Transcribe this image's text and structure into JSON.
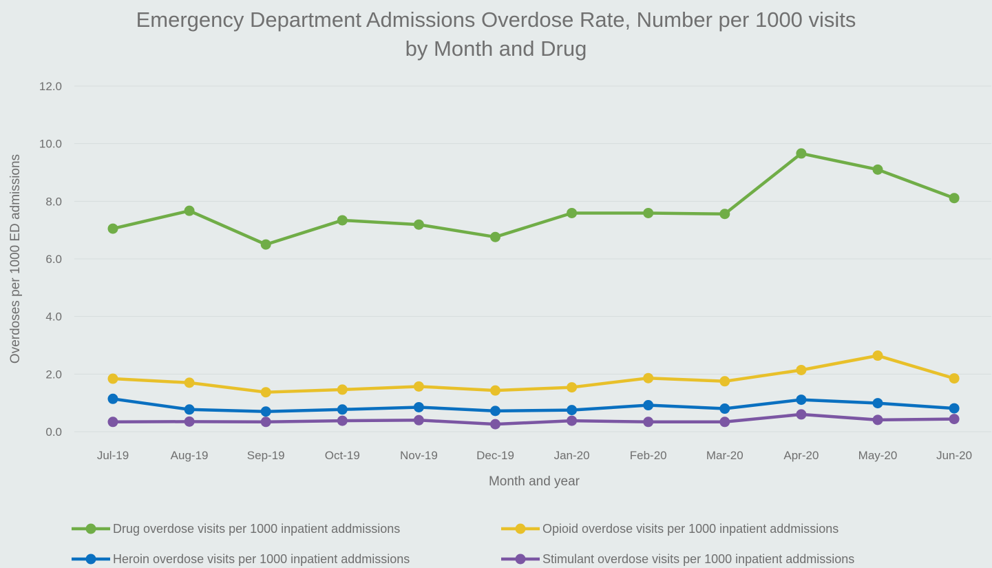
{
  "chart_data": {
    "type": "line",
    "title_line1": "Emergency Department Admissions Overdose Rate, Number per 1000 visits",
    "title_line2": "by Month and Drug",
    "xlabel": "Month and year",
    "ylabel": "Overdoses per 1000 ED admissions",
    "ylim": [
      0,
      12
    ],
    "yticks": [
      "0.0",
      "2.0",
      "4.0",
      "6.0",
      "8.0",
      "10.0",
      "12.0"
    ],
    "categories": [
      "Jul-19",
      "Aug-19",
      "Sep-19",
      "Oct-19",
      "Nov-19",
      "Dec-19",
      "Jan-20",
      "Feb-20",
      "Mar-20",
      "Apr-20",
      "May-20",
      "Jun-20"
    ],
    "grid": true,
    "legend_position": "bottom",
    "series": [
      {
        "name": "Drug overdose visits per 1000 inpatient addmissions",
        "color": "#70ad47",
        "values": [
          7.05,
          7.67,
          6.5,
          7.34,
          7.19,
          6.76,
          7.59,
          7.59,
          7.56,
          9.66,
          9.1,
          8.11
        ]
      },
      {
        "name": "Opioid overdose visits per 1000 inpatient addmissions",
        "color": "#e8c02a",
        "values": [
          1.84,
          1.7,
          1.37,
          1.46,
          1.57,
          1.43,
          1.54,
          1.86,
          1.75,
          2.14,
          2.64,
          1.85
        ]
      },
      {
        "name": "Heroin overdose visits per 1000 inpatient addmissions",
        "color": "#0a70c0",
        "values": [
          1.14,
          0.77,
          0.7,
          0.77,
          0.85,
          0.72,
          0.75,
          0.92,
          0.8,
          1.11,
          0.99,
          0.81
        ]
      },
      {
        "name": "Stimulant overdose visits per 1000 inpatient addmissions",
        "color": "#7b56a3",
        "values": [
          0.34,
          0.35,
          0.34,
          0.38,
          0.4,
          0.26,
          0.38,
          0.34,
          0.34,
          0.6,
          0.41,
          0.44
        ]
      }
    ]
  }
}
